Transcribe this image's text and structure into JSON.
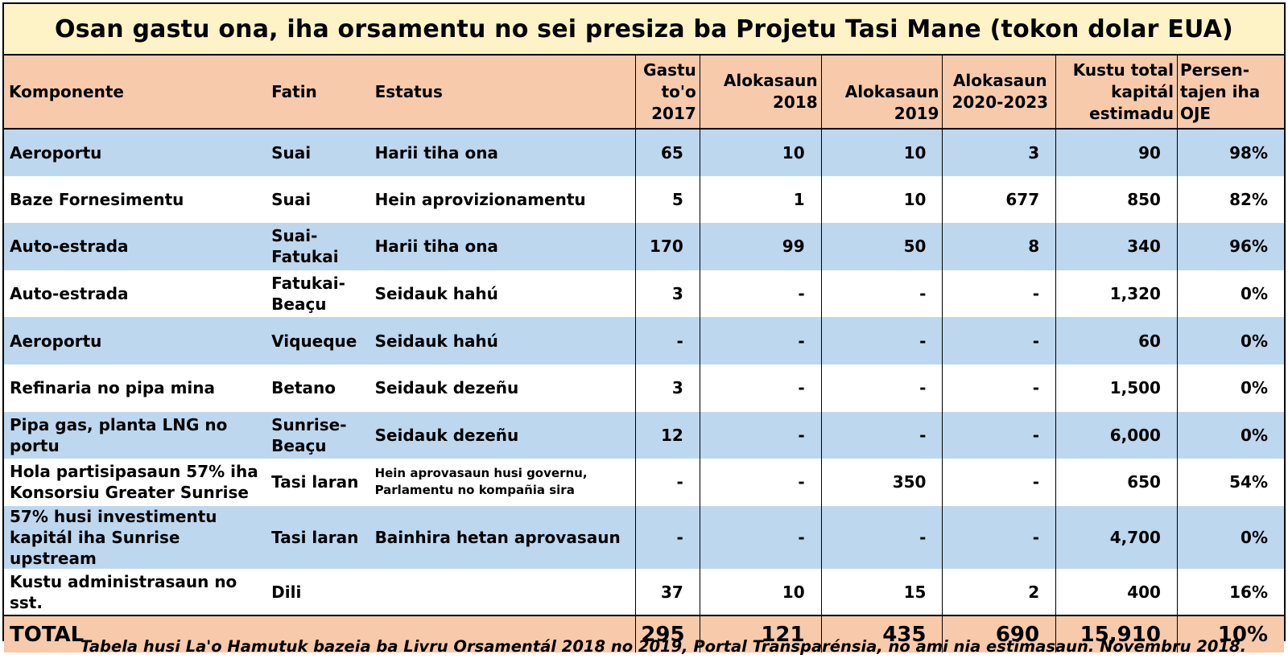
{
  "title": "Osan gastu ona, iha orsamentu no sei presiza ba Projetu Tasi Mane (tokon dolar EUA)",
  "colors": {
    "title_bg": "#fdf3c6",
    "header_bg": "#f7caac",
    "band_blue": "#bdd7ee",
    "band_white": "#ffffff"
  },
  "headers": {
    "komponente": "Komponente",
    "fatin": "Fatin",
    "estatus": "Estatus",
    "gastu_l1": "Gastu",
    "gastu_l2": "to'o",
    "gastu_l3": "2017",
    "alok2018_l1": "Alokasaun",
    "alok2018_l2": "2018",
    "alok2019_l1": "Alokasaun",
    "alok2019_l2": "2019",
    "alok2020_l1": "Alokasaun",
    "alok2020_l2": "2020-2023",
    "kustu_l1": "Kustu total",
    "kustu_l2": "kapitál",
    "kustu_l3": "estimadu",
    "pers_l1": "Persen-",
    "pers_l2": "tajen iha",
    "pers_l3": "OJE"
  },
  "rows": [
    {
      "komponente": "Aeroportu",
      "fatin": "Suai",
      "estatus": "Harii tiha ona",
      "gastu": "65",
      "a2018": "10",
      "a2019": "10",
      "a2020": "3",
      "kustu": "90",
      "pers": "98%"
    },
    {
      "komponente": "Baze Fornesimentu",
      "fatin": "Suai",
      "estatus": "Hein aprovizionamentu",
      "gastu": "5",
      "a2018": "1",
      "a2019": "10",
      "a2020": "677",
      "kustu": "850",
      "pers": "82%"
    },
    {
      "komponente": "Auto-estrada",
      "fatin_l1": "Suai-",
      "fatin_l2": "Fatukai",
      "estatus": "Harii tiha ona",
      "gastu": "170",
      "a2018": "99",
      "a2019": "50",
      "a2020": "8",
      "kustu": "340",
      "pers": "96%"
    },
    {
      "komponente": "Auto-estrada",
      "fatin_l1": "Fatukai-",
      "fatin_l2": "Beaçu",
      "estatus": "Seidauk hahú",
      "gastu": "3",
      "a2018": "-",
      "a2019": "-",
      "a2020": "-",
      "kustu": "1,320",
      "pers": "0%"
    },
    {
      "komponente": "Aeroportu",
      "fatin": "Viqueque",
      "estatus": "Seidauk hahú",
      "gastu": "-",
      "a2018": "-",
      "a2019": "-",
      "a2020": "-",
      "kustu": "60",
      "pers": "0%"
    },
    {
      "komponente": "Refinaria no pipa mina",
      "fatin": "Betano",
      "estatus": "Seidauk dezeñu",
      "gastu": "3",
      "a2018": "-",
      "a2019": "-",
      "a2020": "-",
      "kustu": "1,500",
      "pers": "0%"
    },
    {
      "komponente": "Pipa gas, planta LNG no portu",
      "fatin_l1": "Sunrise-",
      "fatin_l2": "Beaçu",
      "estatus": "Seidauk dezeñu",
      "gastu": "12",
      "a2018": "-",
      "a2019": "-",
      "a2020": "-",
      "kustu": "6,000",
      "pers": "0%"
    },
    {
      "komponente_l1": "Hola partisipasaun 57% iha",
      "komponente_l2": "Konsorsiu Greater Sunrise",
      "fatin": "Tasi laran",
      "estatus_l1": "Hein aprovasaun husi governu,",
      "estatus_l2": "Parlamentu no kompañia sira",
      "gastu": "-",
      "a2018": "-",
      "a2019": "350",
      "a2020": "-",
      "kustu": "650",
      "pers": "54%"
    },
    {
      "komponente_l1": "57% husi investimentu",
      "komponente_l2": "kapitál iha Sunrise upstream",
      "fatin": "Tasi laran",
      "estatus": "Bainhira hetan aprovasaun",
      "gastu": "-",
      "a2018": "-",
      "a2019": "-",
      "a2020": "-",
      "kustu": "4,700",
      "pers": "0%"
    },
    {
      "komponente": "Kustu administrasaun no sst.",
      "fatin": "Dili",
      "estatus": "",
      "gastu": "37",
      "a2018": "10",
      "a2019": "15",
      "a2020": "2",
      "kustu": "400",
      "pers": "16%"
    }
  ],
  "total": {
    "label": "TOTAL",
    "gastu": "295",
    "a2018": "121",
    "a2019": "435",
    "a2020": "690",
    "kustu": "15,910",
    "pers": "10%"
  },
  "caption": "Tabela husi La'o Hamutuk bazeia ba Livru Orsamentál 2018 no 2019, Portal Transparénsia, no ami nia estimasaun.  Novembru 2018."
}
